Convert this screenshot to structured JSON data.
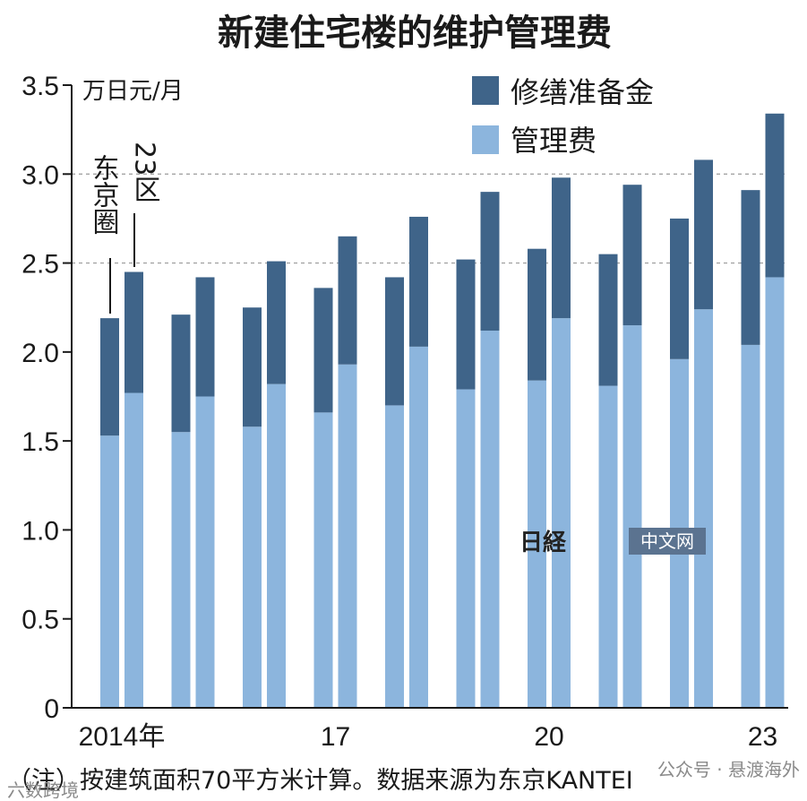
{
  "chart_data": {
    "type": "bar",
    "stacked": true,
    "title": "新建住宅楼的维护管理费",
    "unit": "万日元/月",
    "ylim": [
      0,
      3.5
    ],
    "yticks": [
      "0",
      "0.5",
      "1.0",
      "1.5",
      "2.0",
      "2.5",
      "3.0",
      "3.5"
    ],
    "grid": "dashed horizontal lines at 3.0 and 2.5",
    "legend_position": "top-right",
    "x_tick_labels": [
      "2014年",
      "17",
      "20",
      "23"
    ],
    "x_tick_years": [
      2014,
      2017,
      2020,
      2023
    ],
    "years": [
      2014,
      2015,
      2016,
      2017,
      2018,
      2019,
      2020,
      2021,
      2022,
      2023
    ],
    "groups": [
      "东京圈",
      "23区"
    ],
    "series": [
      {
        "name": "管理费",
        "color": "#8cb5dd",
        "values": {
          "东京圈": [
            1.53,
            1.55,
            1.58,
            1.66,
            1.7,
            1.79,
            1.84,
            1.81,
            1.96,
            2.04
          ],
          "23区": [
            1.77,
            1.75,
            1.82,
            1.93,
            2.03,
            2.12,
            2.19,
            2.15,
            2.24,
            2.42
          ]
        }
      },
      {
        "name": "修缮准备金",
        "color": "#3f6489",
        "values": {
          "东京圈": [
            0.66,
            0.66,
            0.67,
            0.7,
            0.72,
            0.73,
            0.74,
            0.74,
            0.79,
            0.87
          ],
          "23区": [
            0.68,
            0.67,
            0.69,
            0.72,
            0.73,
            0.78,
            0.79,
            0.79,
            0.84,
            0.92
          ]
        }
      }
    ],
    "annotations": [
      "东京圈",
      "23区"
    ],
    "note": "（注）按建筑面积70平方米计算。数据来源为东京KANTEI"
  },
  "watermark": {
    "brand": "日経",
    "tag": "中文网",
    "corner_left": "六数跨境",
    "corner_right": "公众号 · 悬渡海外"
  },
  "colors": {
    "management_fee": "#8cb5dd",
    "repair_reserve": "#3f6489",
    "axis": "#1a1a1a"
  }
}
